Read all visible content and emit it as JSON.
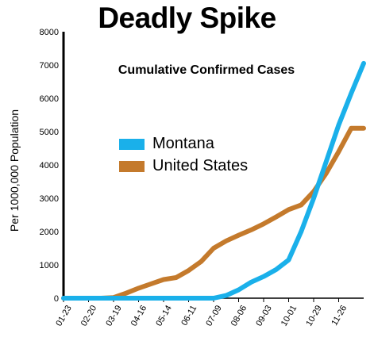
{
  "chart_data": {
    "type": "line",
    "title": "Deadly Spike",
    "subtitle": "Cumulative Confirmed Cases",
    "ylabel": "Per 1000,000 Population",
    "xlabel": "",
    "ylim": [
      0,
      8000
    ],
    "yticks": [
      0,
      1000,
      2000,
      3000,
      4000,
      5000,
      6000,
      7000,
      8000
    ],
    "xtick_labels": [
      "01-23",
      "02-20",
      "03-19",
      "04-16",
      "05-14",
      "06-11",
      "07-09",
      "08-06",
      "09-03",
      "10-01",
      "10-29",
      "11-26"
    ],
    "x_points_per_tick": 2,
    "legend_position": "center-left",
    "series": [
      {
        "name": "Montana",
        "color": "#1ab0ea",
        "values": [
          0,
          0,
          0,
          0,
          0,
          0,
          0,
          0,
          0,
          0,
          0,
          0,
          0,
          80,
          250,
          480,
          650,
          860,
          1150,
          2000,
          3000,
          4100,
          5200,
          6150,
          7050
        ]
      },
      {
        "name": "United States",
        "color": "#c47a2c",
        "values": [
          0,
          0,
          0,
          0,
          20,
          150,
          300,
          430,
          560,
          620,
          830,
          1100,
          1500,
          1720,
          1890,
          2050,
          2230,
          2440,
          2660,
          2800,
          3200,
          3750,
          4400,
          5100,
          5100
        ]
      }
    ]
  }
}
